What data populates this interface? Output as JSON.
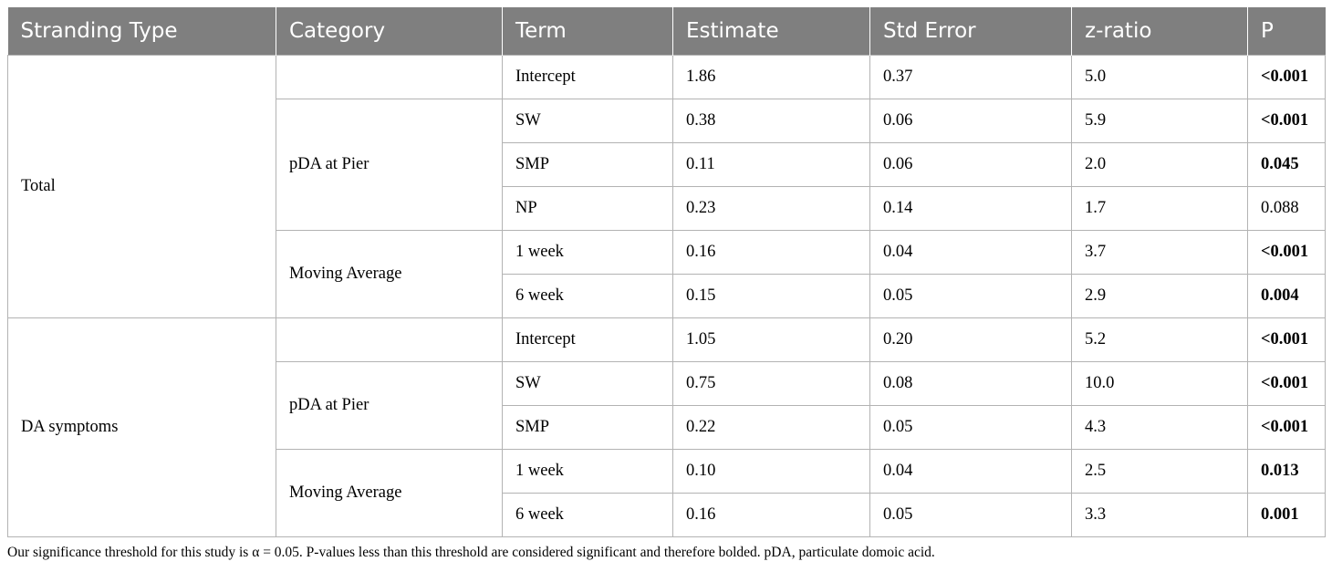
{
  "columns": [
    "Stranding Type",
    "Category",
    "Term",
    "Estimate",
    "Std Error",
    "z-ratio",
    "P"
  ],
  "groups": [
    {
      "type": "Total",
      "blocks": [
        {
          "category": "",
          "rows": [
            {
              "term": "Intercept",
              "estimate": "1.86",
              "se": "0.37",
              "z": "5.0",
              "p": "<0.001",
              "significant": true
            }
          ]
        },
        {
          "category": "pDA at Pier",
          "rows": [
            {
              "term": "SW",
              "estimate": "0.38",
              "se": "0.06",
              "z": "5.9",
              "p": "<0.001",
              "significant": true
            },
            {
              "term": "SMP",
              "estimate": "0.11",
              "se": "0.06",
              "z": "2.0",
              "p": "0.045",
              "significant": true
            },
            {
              "term": "NP",
              "estimate": "0.23",
              "se": "0.14",
              "z": "1.7",
              "p": "0.088",
              "significant": false
            }
          ]
        },
        {
          "category": "Moving Average",
          "rows": [
            {
              "term": "1 week",
              "estimate": "0.16",
              "se": "0.04",
              "z": "3.7",
              "p": "<0.001",
              "significant": true
            },
            {
              "term": "6 week",
              "estimate": "0.15",
              "se": "0.05",
              "z": "2.9",
              "p": "0.004",
              "significant": true
            }
          ]
        }
      ]
    },
    {
      "type": "DA symptoms",
      "blocks": [
        {
          "category": "",
          "rows": [
            {
              "term": "Intercept",
              "estimate": "1.05",
              "se": "0.20",
              "z": "5.2",
              "p": "<0.001",
              "significant": true
            }
          ]
        },
        {
          "category": "pDA at Pier",
          "rows": [
            {
              "term": "SW",
              "estimate": "0.75",
              "se": "0.08",
              "z": "10.0",
              "p": "<0.001",
              "significant": true
            },
            {
              "term": "SMP",
              "estimate": "0.22",
              "se": "0.05",
              "z": "4.3",
              "p": "<0.001",
              "significant": true
            }
          ]
        },
        {
          "category": "Moving Average",
          "rows": [
            {
              "term": "1 week",
              "estimate": "0.10",
              "se": "0.04",
              "z": "2.5",
              "p": "0.013",
              "significant": true
            },
            {
              "term": "6 week",
              "estimate": "0.16",
              "se": "0.05",
              "z": "3.3",
              "p": "0.001",
              "significant": true
            }
          ]
        }
      ]
    }
  ],
  "footnote": "Our significance threshold for this study is α = 0.05. P-values less than this threshold are considered significant and therefore bolded. pDA, particulate domoic acid."
}
